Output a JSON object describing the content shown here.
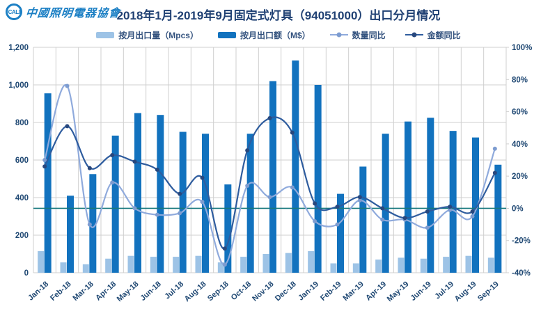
{
  "header": {
    "logo_mark": "CALI",
    "logo_text": "中國照明電器協會",
    "title": "2018年1月-2019年9月固定式灯具（94051000）出口分月情况"
  },
  "legend": [
    {
      "label": "按月出口量（Mpcs）",
      "type": "bar",
      "color_key": "bar_quantity"
    },
    {
      "label": "按月出口额（M$）",
      "type": "bar",
      "color_key": "bar_value"
    },
    {
      "label": "数量同比",
      "type": "line",
      "color_key": "line_quantity"
    },
    {
      "label": "金额同比",
      "type": "line",
      "color_key": "line_value"
    }
  ],
  "chart_data": {
    "type": "combo",
    "title": "2018年1月-2019年9月固定式灯具（94051000）出口分月情况",
    "categories": [
      "Jan-18",
      "Feb-18",
      "Mar-18",
      "Apr-18",
      "May-18",
      "Jun-18",
      "Jul-18",
      "Aug-18",
      "Sep-18",
      "Oct-18",
      "Nov-18",
      "Dec-18",
      "Jan-19",
      "Feb-19",
      "Mar-19",
      "Apr-19",
      "May-19",
      "Jun-19",
      "Jul-19",
      "Aug-19",
      "Sep-19"
    ],
    "series": [
      {
        "name": "按月出口量（Mpcs）",
        "type": "bar",
        "axis": "left",
        "values": [
          115,
          55,
          45,
          75,
          90,
          85,
          85,
          90,
          55,
          85,
          100,
          105,
          115,
          50,
          50,
          70,
          80,
          75,
          85,
          90,
          80
        ]
      },
      {
        "name": "按月出口额（M$）",
        "type": "bar",
        "axis": "left",
        "values": [
          955,
          410,
          525,
          730,
          850,
          840,
          750,
          740,
          470,
          740,
          1020,
          1130,
          1000,
          420,
          565,
          740,
          805,
          825,
          755,
          720,
          575
        ]
      },
      {
        "name": "数量同比",
        "type": "line",
        "axis": "right",
        "unit": "%",
        "values": [
          30,
          76,
          -10,
          16,
          0,
          -4,
          -3,
          4,
          -35,
          14,
          7,
          13,
          -8,
          -10,
          5,
          -7,
          -7,
          -12,
          -1,
          -5,
          37
        ]
      },
      {
        "name": "金额同比",
        "type": "line",
        "axis": "right",
        "unit": "%",
        "values": [
          26,
          51,
          25,
          33,
          29,
          24,
          9,
          19,
          -25,
          36,
          56,
          47,
          3,
          1,
          7,
          0,
          -6,
          -2,
          1,
          -2,
          22
        ]
      }
    ],
    "left_axis": {
      "min": 0,
      "max": 1200,
      "step": 200,
      "ticks": [
        "0",
        "200",
        "400",
        "600",
        "800",
        "1,000",
        "1,200"
      ]
    },
    "right_axis": {
      "min": -40,
      "max": 100,
      "step": 20,
      "ticks": [
        "-40%",
        "-20%",
        "0%",
        "20%",
        "40%",
        "60%",
        "80%",
        "100%"
      ]
    },
    "grid": true,
    "legend_position": "top",
    "zero_line_on_right_axis": 0
  },
  "colors": {
    "bar_quantity": "#9DC3E6",
    "bar_value": "#1272BE",
    "line_quantity": "#8FAADC",
    "line_value": "#2E5C9E",
    "marker_quantity": "#7D9CD0",
    "marker_value": "#28487E",
    "zero_line": "#17787E",
    "grid": "#CFCFCF",
    "axis_text": "#1F4873",
    "title": "#1F4073",
    "logo": "#1B7FC4"
  }
}
